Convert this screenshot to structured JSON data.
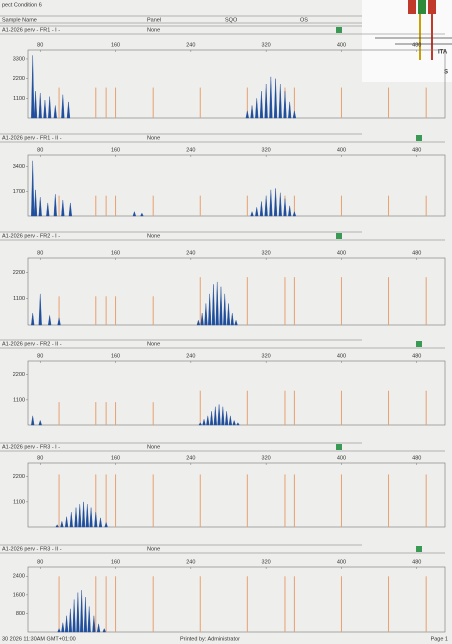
{
  "header": {
    "title": "pect Condition 6",
    "columns": [
      "Sample Name",
      "Panel",
      "SQO",
      "OS"
    ]
  },
  "inset": {
    "labels": [
      "ITA",
      "S"
    ]
  },
  "chart_data": [
    {
      "type": "stem",
      "title": "A1-2026 perv - FR1 - I -",
      "panel": "None",
      "xlim": [
        67,
        510
      ],
      "xticks": [
        80,
        160,
        240,
        320,
        400,
        480
      ],
      "ylim": [
        0,
        3800
      ],
      "yticks": [
        1100,
        2200,
        3300
      ],
      "series": [
        {
          "color": "#e8a070",
          "shape": "line",
          "x": [
            100,
            139,
            150,
            160,
            200,
            250,
            300,
            340,
            350,
            400,
            450,
            490
          ],
          "values": [
            1700,
            1700,
            1700,
            1700,
            1700,
            1700,
            1700,
            1700,
            1700,
            1700,
            1700,
            1700
          ]
        },
        {
          "color": "#1f4e9c",
          "shape": "peak",
          "x": [
            72,
            75,
            80,
            85,
            90,
            96,
            104,
            110,
            300,
            305,
            310,
            315,
            320,
            325,
            330,
            335,
            340,
            345,
            350
          ],
          "values": [
            3500,
            1500,
            1400,
            1000,
            1200,
            700,
            1300,
            900,
            400,
            700,
            1100,
            1500,
            1900,
            2300,
            2200,
            1900,
            1500,
            900,
            400
          ]
        }
      ]
    },
    {
      "type": "stem",
      "title": "A1-2026 perv - FR1 - II -",
      "panel": "None",
      "xlim": [
        67,
        510
      ],
      "xticks": [
        80,
        160,
        240,
        320,
        400,
        480
      ],
      "ylim": [
        0,
        4200
      ],
      "yticks": [
        1700,
        3400
      ],
      "series": [
        {
          "color": "#e8a070",
          "shape": "line",
          "x": [
            100,
            139,
            150,
            160,
            200,
            250,
            300,
            340,
            350,
            400,
            450,
            490
          ],
          "values": [
            1400,
            1400,
            1400,
            1400,
            1400,
            1400,
            1400,
            1400,
            1400,
            1400,
            1400,
            1400
          ]
        },
        {
          "color": "#1f4e9c",
          "shape": "peak",
          "x": [
            72,
            75,
            80,
            88,
            96,
            104,
            112,
            180,
            188,
            305,
            310,
            315,
            320,
            325,
            330,
            335,
            340,
            345,
            350
          ],
          "values": [
            3800,
            1800,
            1300,
            900,
            1500,
            1100,
            900,
            300,
            200,
            300,
            600,
            1000,
            1400,
            1800,
            1900,
            1600,
            1200,
            700,
            300
          ]
        }
      ]
    },
    {
      "type": "stem",
      "title": "A1-2026 perv - FR2 - I -",
      "panel": "None",
      "xlim": [
        67,
        510
      ],
      "xticks": [
        80,
        160,
        240,
        320,
        400,
        480
      ],
      "ylim": [
        0,
        2800
      ],
      "yticks": [
        1100,
        2200
      ],
      "series": [
        {
          "color": "#e8a070",
          "shape": "line",
          "x": [
            100,
            139,
            150,
            160,
            200,
            250,
            300,
            340,
            350,
            400,
            450,
            490
          ],
          "values": [
            1200,
            1200,
            1200,
            1200,
            1200,
            2000,
            2000,
            2000,
            2000,
            2000,
            2000,
            2000
          ]
        },
        {
          "color": "#1f4e9c",
          "shape": "peak",
          "x": [
            72,
            80,
            90,
            100,
            248,
            252,
            256,
            260,
            264,
            268,
            272,
            276,
            280,
            284,
            288
          ],
          "values": [
            500,
            1300,
            400,
            300,
            200,
            500,
            900,
            1300,
            1700,
            1800,
            1600,
            1300,
            900,
            500,
            200
          ]
        }
      ]
    },
    {
      "type": "stem",
      "title": "A1-2026 perv - FR2 - II -",
      "panel": "None",
      "xlim": [
        67,
        510
      ],
      "xticks": [
        80,
        160,
        240,
        320,
        400,
        480
      ],
      "ylim": [
        0,
        2800
      ],
      "yticks": [
        1100,
        2200
      ],
      "series": [
        {
          "color": "#e8a070",
          "shape": "line",
          "x": [
            100,
            139,
            150,
            160,
            200,
            250,
            300,
            340,
            350,
            400,
            450,
            490
          ],
          "values": [
            1000,
            1000,
            1000,
            1000,
            1000,
            1500,
            1500,
            1500,
            1500,
            1500,
            1500,
            1500
          ]
        },
        {
          "color": "#1f4e9c",
          "shape": "peak",
          "x": [
            72,
            80,
            250,
            254,
            258,
            262,
            266,
            270,
            274,
            278,
            282,
            286,
            290
          ],
          "values": [
            400,
            200,
            100,
            250,
            400,
            600,
            800,
            900,
            800,
            600,
            400,
            200,
            100
          ]
        }
      ]
    },
    {
      "type": "stem",
      "title": "A1-2026 perv - FR3 - I -",
      "panel": "None",
      "xlim": [
        67,
        510
      ],
      "xticks": [
        80,
        160,
        240,
        320,
        400,
        480
      ],
      "ylim": [
        0,
        2800
      ],
      "yticks": [
        1100,
        2200
      ],
      "series": [
        {
          "color": "#e8a070",
          "shape": "line",
          "x": [
            100,
            139,
            150,
            160,
            200,
            250,
            300,
            340,
            350,
            400,
            450,
            490
          ],
          "values": [
            2300,
            2300,
            2300,
            2300,
            2300,
            2300,
            2300,
            2300,
            2300,
            2300,
            2300,
            2300
          ]
        },
        {
          "color": "#1f4e9c",
          "shape": "peak",
          "x": [
            98,
            103,
            108,
            113,
            118,
            122,
            126,
            130,
            134,
            139,
            144,
            150
          ],
          "values": [
            100,
            250,
            450,
            650,
            850,
            1000,
            1100,
            1000,
            850,
            650,
            400,
            200
          ]
        }
      ]
    },
    {
      "type": "stem",
      "title": "A1-2026 perv - FR3 - II -",
      "panel": "None",
      "xlim": [
        67,
        510
      ],
      "xticks": [
        80,
        160,
        240,
        320,
        400,
        480
      ],
      "ylim": [
        0,
        2800
      ],
      "yticks": [
        800,
        1600,
        2400
      ],
      "series": [
        {
          "color": "#e8a070",
          "shape": "line",
          "x": [
            100,
            139,
            150,
            160,
            200,
            250,
            300,
            340,
            350,
            400,
            450,
            490
          ],
          "values": [
            2400,
            2400,
            2400,
            2400,
            2400,
            2400,
            2400,
            2400,
            2400,
            2400,
            2400,
            2400
          ]
        },
        {
          "color": "#1f4e9c",
          "shape": "peak",
          "x": [
            100,
            104,
            108,
            112,
            116,
            120,
            124,
            128,
            132,
            137,
            142,
            148
          ],
          "values": [
            150,
            400,
            700,
            1000,
            1400,
            1700,
            1800,
            1500,
            1100,
            700,
            350,
            150
          ]
        }
      ]
    }
  ],
  "footer": {
    "date": "30 2026 11:30AM GMT+01:00",
    "printed_by": "Printed by: Administrator",
    "page": "Page 1"
  }
}
